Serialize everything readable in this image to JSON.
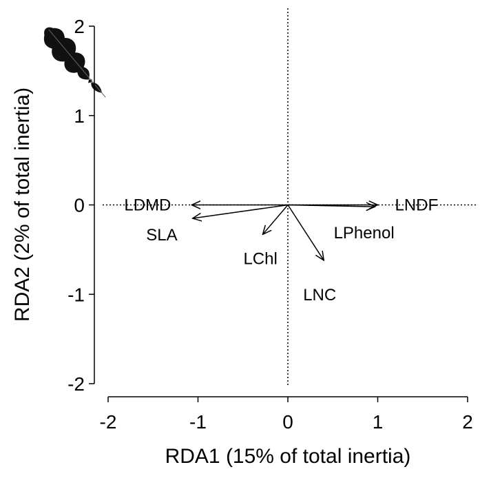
{
  "chart_data": {
    "type": "biplot",
    "xlabel": "RDA1 (15% of total inertia)",
    "ylabel": "RDA2 (2% of total inertia)",
    "xlim": [
      -2,
      2
    ],
    "ylim": [
      -2,
      2
    ],
    "xticks": [
      -2,
      -1,
      0,
      1,
      2
    ],
    "yticks": [
      -2,
      -1,
      0,
      1,
      2
    ],
    "color": "#000000",
    "vectors": [
      {
        "name": "LNDF",
        "x": 1.0,
        "y": 0.0
      },
      {
        "name": "LPhenol",
        "x": 0.97,
        "y": -0.02
      },
      {
        "name": "LNC",
        "x": 0.4,
        "y": -0.62
      },
      {
        "name": "LChl",
        "x": -0.28,
        "y": -0.33
      },
      {
        "name": "LDMD",
        "x": -1.07,
        "y": 0.0
      },
      {
        "name": "SLA",
        "x": -1.06,
        "y": -0.15
      }
    ]
  }
}
